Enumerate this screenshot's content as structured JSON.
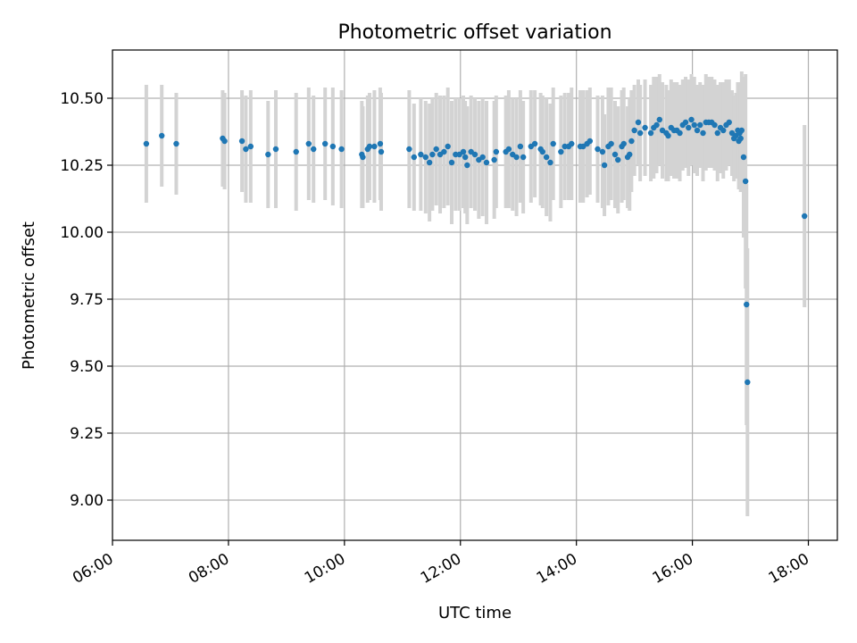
{
  "chart_data": {
    "type": "scatter",
    "title": "Photometric offset variation",
    "xlabel": "UTC time",
    "ylabel": "Photometric offset",
    "x_ticks": [
      "06:00",
      "08:00",
      "10:00",
      "12:00",
      "14:00",
      "16:00",
      "18:00"
    ],
    "y_ticks": [
      "9.00",
      "9.25",
      "9.50",
      "9.75",
      "10.00",
      "10.25",
      "10.50"
    ],
    "xlim": [
      "06:00",
      "18:30"
    ],
    "ylim": [
      8.85,
      10.68
    ],
    "grid": true,
    "colors": {
      "points": "#1f77b4",
      "errorbars": "#d3d3d3"
    },
    "series": [
      {
        "x": [
          "06:35",
          "06:51",
          "07:06",
          "07:54",
          "07:56",
          "08:14",
          "08:18",
          "08:23",
          "08:41",
          "08:49",
          "09:10",
          "09:23",
          "09:28",
          "09:40",
          "09:48",
          "09:57",
          "10:18",
          "10:19",
          "10:24",
          "10:26",
          "10:31",
          "10:37",
          "10:38",
          "11:07",
          "11:12",
          "11:19",
          "11:24",
          "11:28",
          "11:31",
          "11:35",
          "11:39",
          "11:43",
          "11:47",
          "11:51",
          "11:55",
          "11:59",
          "12:03",
          "12:05",
          "12:07",
          "12:11",
          "12:15",
          "12:19",
          "12:23",
          "12:27",
          "12:35",
          "12:37",
          "12:47",
          "12:50",
          "12:54",
          "12:58",
          "13:02",
          "13:05",
          "13:13",
          "13:17",
          "13:23",
          "13:25",
          "13:29",
          "13:33",
          "13:36",
          "13:44",
          "13:48",
          "13:52",
          "13:55",
          "14:04",
          "14:07",
          "14:11",
          "14:14",
          "14:22",
          "14:27",
          "14:29",
          "14:33",
          "14:36",
          "14:40",
          "14:43",
          "14:47",
          "14:49",
          "14:53",
          "14:55",
          "14:57",
          "15:00",
          "15:04",
          "15:06",
          "15:11",
          "15:17",
          "15:20",
          "15:23",
          "15:26",
          "15:29",
          "15:33",
          "15:35",
          "15:38",
          "15:41",
          "15:44",
          "15:47",
          "15:50",
          "15:53",
          "15:56",
          "15:59",
          "16:02",
          "16:05",
          "16:08",
          "16:11",
          "16:14",
          "16:17",
          "16:20",
          "16:23",
          "16:26",
          "16:29",
          "16:32",
          "16:35",
          "16:38",
          "16:41",
          "16:43",
          "16:45",
          "16:47",
          "16:48",
          "16:49",
          "16:50",
          "16:51",
          "16:53",
          "16:55",
          "16:56",
          "16:57",
          "17:56"
        ],
        "y": [
          10.33,
          10.36,
          10.33,
          10.35,
          10.34,
          10.34,
          10.31,
          10.32,
          10.29,
          10.31,
          10.3,
          10.33,
          10.31,
          10.33,
          10.32,
          10.31,
          10.29,
          10.28,
          10.31,
          10.32,
          10.32,
          10.33,
          10.3,
          10.31,
          10.28,
          10.29,
          10.28,
          10.26,
          10.29,
          10.31,
          10.29,
          10.3,
          10.32,
          10.26,
          10.29,
          10.29,
          10.3,
          10.28,
          10.25,
          10.3,
          10.29,
          10.27,
          10.28,
          10.26,
          10.27,
          10.3,
          10.3,
          10.31,
          10.29,
          10.28,
          10.32,
          10.28,
          10.32,
          10.33,
          10.31,
          10.3,
          10.28,
          10.26,
          10.33,
          10.3,
          10.32,
          10.32,
          10.33,
          10.32,
          10.32,
          10.33,
          10.34,
          10.31,
          10.3,
          10.25,
          10.32,
          10.33,
          10.29,
          10.27,
          10.32,
          10.33,
          10.28,
          10.29,
          10.34,
          10.38,
          10.41,
          10.37,
          10.39,
          10.37,
          10.39,
          10.4,
          10.42,
          10.38,
          10.37,
          10.36,
          10.39,
          10.38,
          10.38,
          10.37,
          10.4,
          10.41,
          10.39,
          10.42,
          10.4,
          10.38,
          10.4,
          10.37,
          10.41,
          10.41,
          10.41,
          10.4,
          10.37,
          10.39,
          10.38,
          10.4,
          10.41,
          10.37,
          10.35,
          10.36,
          10.38,
          10.34,
          10.37,
          10.35,
          10.38,
          10.28,
          10.19,
          9.73,
          9.44,
          10.06
        ],
        "err": [
          0.22,
          0.19,
          0.19,
          0.18,
          0.18,
          0.19,
          0.2,
          0.21,
          0.2,
          0.22,
          0.22,
          0.21,
          0.2,
          0.21,
          0.22,
          0.22,
          0.2,
          0.19,
          0.2,
          0.2,
          0.21,
          0.21,
          0.22,
          0.22,
          0.2,
          0.21,
          0.21,
          0.22,
          0.21,
          0.21,
          0.22,
          0.21,
          0.22,
          0.23,
          0.21,
          0.21,
          0.21,
          0.21,
          0.22,
          0.21,
          0.21,
          0.22,
          0.22,
          0.23,
          0.22,
          0.21,
          0.21,
          0.22,
          0.21,
          0.22,
          0.21,
          0.21,
          0.21,
          0.2,
          0.21,
          0.21,
          0.22,
          0.22,
          0.21,
          0.21,
          0.2,
          0.2,
          0.21,
          0.21,
          0.21,
          0.2,
          0.2,
          0.2,
          0.21,
          0.19,
          0.22,
          0.21,
          0.2,
          0.2,
          0.21,
          0.21,
          0.19,
          0.21,
          0.19,
          0.17,
          0.16,
          0.18,
          0.18,
          0.18,
          0.19,
          0.18,
          0.17,
          0.18,
          0.18,
          0.17,
          0.18,
          0.18,
          0.18,
          0.18,
          0.17,
          0.17,
          0.18,
          0.17,
          0.18,
          0.17,
          0.16,
          0.18,
          0.18,
          0.17,
          0.17,
          0.17,
          0.18,
          0.17,
          0.18,
          0.17,
          0.16,
          0.16,
          0.16,
          0.16,
          0.18,
          0.18,
          0.19,
          0.2,
          0.22,
          0.3,
          0.4,
          0.45,
          0.5,
          0.34
        ]
      }
    ]
  }
}
